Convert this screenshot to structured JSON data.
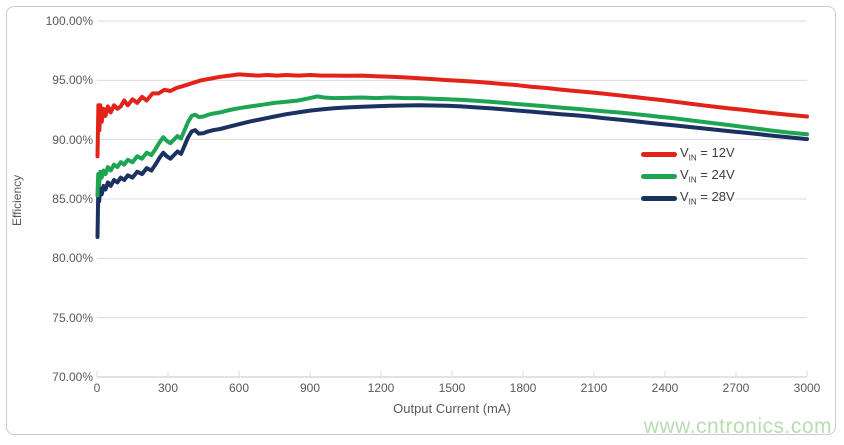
{
  "colors": {
    "red": "#e2231a",
    "green": "#1ea553",
    "navy": "#1a3162",
    "grid": "#dcdcdc",
    "axis_line": "#c6c6c6",
    "axis_text": "#595959",
    "legend_text": "#3d3d3d",
    "watermark": "#b6deb0",
    "card_border": "#cccccc"
  },
  "watermark": {
    "text": "www.cntronics.com"
  },
  "chart_data": {
    "type": "line",
    "title": "",
    "xlabel": "Output Current (mA)",
    "ylabel": "Efficiency",
    "xlim": [
      0,
      3000
    ],
    "ylim": [
      70,
      100
    ],
    "grid": "horizontal",
    "legend_position": "middle-right",
    "x_ticks": [
      0,
      300,
      600,
      900,
      1200,
      1500,
      1800,
      2100,
      2400,
      2700,
      3000
    ],
    "x_tick_labels": [
      "0",
      "300",
      "600",
      "900",
      "1200",
      "1500",
      "1800",
      "2100",
      "2400",
      "2700",
      "3000"
    ],
    "y_ticks": [
      100,
      95,
      90,
      85,
      80,
      75,
      70
    ],
    "y_tick_labels": [
      "100.00%",
      "95.00%",
      "90.00%",
      "85.00%",
      "80.00%",
      "75.00%",
      "70.00%"
    ],
    "series": [
      {
        "name": "VIN = 12V",
        "legend": {
          "base": "V",
          "sub": "IN",
          "rest": " = 12V"
        },
        "color": "#e2231a",
        "points": [
          [
            2,
            88.6
          ],
          [
            6,
            92.9
          ],
          [
            10,
            90.8
          ],
          [
            14,
            92.9
          ],
          [
            20,
            91.5
          ],
          [
            28,
            92.6
          ],
          [
            36,
            92.0
          ],
          [
            46,
            92.8
          ],
          [
            58,
            92.3
          ],
          [
            72,
            92.9
          ],
          [
            86,
            92.6
          ],
          [
            100,
            92.8
          ],
          [
            115,
            93.3
          ],
          [
            130,
            92.9
          ],
          [
            150,
            93.4
          ],
          [
            170,
            93.1
          ],
          [
            190,
            93.6
          ],
          [
            210,
            93.3
          ],
          [
            235,
            93.9
          ],
          [
            260,
            93.9
          ],
          [
            285,
            94.2
          ],
          [
            310,
            94.1
          ],
          [
            335,
            94.35
          ],
          [
            360,
            94.5
          ],
          [
            400,
            94.75
          ],
          [
            440,
            95.0
          ],
          [
            480,
            95.15
          ],
          [
            520,
            95.3
          ],
          [
            560,
            95.4
          ],
          [
            600,
            95.5
          ],
          [
            640,
            95.45
          ],
          [
            680,
            95.4
          ],
          [
            720,
            95.45
          ],
          [
            760,
            95.4
          ],
          [
            800,
            95.45
          ],
          [
            850,
            95.4
          ],
          [
            900,
            95.45
          ],
          [
            950,
            95.4
          ],
          [
            1000,
            95.4
          ],
          [
            1060,
            95.38
          ],
          [
            1120,
            95.4
          ],
          [
            1180,
            95.35
          ],
          [
            1240,
            95.3
          ],
          [
            1300,
            95.25
          ],
          [
            1360,
            95.18
          ],
          [
            1420,
            95.1
          ],
          [
            1480,
            95.02
          ],
          [
            1540,
            94.95
          ],
          [
            1600,
            94.88
          ],
          [
            1660,
            94.78
          ],
          [
            1720,
            94.68
          ],
          [
            1780,
            94.58
          ],
          [
            1840,
            94.45
          ],
          [
            1900,
            94.35
          ],
          [
            1960,
            94.22
          ],
          [
            2020,
            94.1
          ],
          [
            2080,
            94.0
          ],
          [
            2140,
            93.88
          ],
          [
            2200,
            93.75
          ],
          [
            2260,
            93.62
          ],
          [
            2320,
            93.48
          ],
          [
            2380,
            93.35
          ],
          [
            2440,
            93.2
          ],
          [
            2500,
            93.05
          ],
          [
            2560,
            92.9
          ],
          [
            2620,
            92.75
          ],
          [
            2680,
            92.62
          ],
          [
            2740,
            92.5
          ],
          [
            2800,
            92.35
          ],
          [
            2860,
            92.22
          ],
          [
            2920,
            92.1
          ],
          [
            3000,
            91.95
          ]
        ]
      },
      {
        "name": "VIN = 24V",
        "legend": {
          "base": "V",
          "sub": "IN",
          "rest": " = 24V"
        },
        "color": "#1ea553",
        "points": [
          [
            2,
            85.3
          ],
          [
            5,
            87.1
          ],
          [
            9,
            86.2
          ],
          [
            14,
            87.3
          ],
          [
            20,
            86.8
          ],
          [
            28,
            87.4
          ],
          [
            36,
            87.1
          ],
          [
            46,
            87.7
          ],
          [
            58,
            87.4
          ],
          [
            72,
            87.9
          ],
          [
            86,
            87.7
          ],
          [
            100,
            88.1
          ],
          [
            115,
            87.9
          ],
          [
            130,
            88.3
          ],
          [
            150,
            88.1
          ],
          [
            170,
            88.6
          ],
          [
            190,
            88.4
          ],
          [
            210,
            88.9
          ],
          [
            230,
            88.7
          ],
          [
            250,
            89.3
          ],
          [
            265,
            89.8
          ],
          [
            280,
            90.2
          ],
          [
            295,
            89.9
          ],
          [
            310,
            89.7
          ],
          [
            325,
            90.0
          ],
          [
            340,
            90.3
          ],
          [
            355,
            90.1
          ],
          [
            370,
            90.8
          ],
          [
            385,
            91.5
          ],
          [
            400,
            92.0
          ],
          [
            415,
            92.1
          ],
          [
            430,
            91.9
          ],
          [
            450,
            91.95
          ],
          [
            470,
            92.1
          ],
          [
            490,
            92.2
          ],
          [
            520,
            92.3
          ],
          [
            560,
            92.5
          ],
          [
            600,
            92.65
          ],
          [
            650,
            92.8
          ],
          [
            700,
            92.95
          ],
          [
            750,
            93.1
          ],
          [
            800,
            93.2
          ],
          [
            850,
            93.3
          ],
          [
            900,
            93.5
          ],
          [
            930,
            93.65
          ],
          [
            960,
            93.55
          ],
          [
            1000,
            93.5
          ],
          [
            1060,
            93.52
          ],
          [
            1120,
            93.55
          ],
          [
            1180,
            93.5
          ],
          [
            1240,
            93.55
          ],
          [
            1300,
            93.5
          ],
          [
            1360,
            93.5
          ],
          [
            1420,
            93.45
          ],
          [
            1480,
            93.4
          ],
          [
            1540,
            93.35
          ],
          [
            1600,
            93.28
          ],
          [
            1660,
            93.2
          ],
          [
            1720,
            93.1
          ],
          [
            1780,
            93.0
          ],
          [
            1840,
            92.9
          ],
          [
            1900,
            92.8
          ],
          [
            1960,
            92.7
          ],
          [
            2020,
            92.6
          ],
          [
            2080,
            92.5
          ],
          [
            2140,
            92.4
          ],
          [
            2200,
            92.3
          ],
          [
            2260,
            92.18
          ],
          [
            2320,
            92.05
          ],
          [
            2380,
            91.92
          ],
          [
            2440,
            91.8
          ],
          [
            2500,
            91.65
          ],
          [
            2560,
            91.5
          ],
          [
            2620,
            91.35
          ],
          [
            2680,
            91.2
          ],
          [
            2740,
            91.05
          ],
          [
            2800,
            90.9
          ],
          [
            2860,
            90.75
          ],
          [
            2920,
            90.6
          ],
          [
            3000,
            90.45
          ]
        ]
      },
      {
        "name": "VIN = 28V",
        "legend": {
          "base": "V",
          "sub": "IN",
          "rest": " = 28V"
        },
        "color": "#1a3162",
        "points": [
          [
            2,
            81.8
          ],
          [
            5,
            85.4
          ],
          [
            9,
            84.8
          ],
          [
            14,
            85.9
          ],
          [
            20,
            85.4
          ],
          [
            28,
            86.1
          ],
          [
            36,
            85.8
          ],
          [
            46,
            86.4
          ],
          [
            58,
            86.1
          ],
          [
            72,
            86.6
          ],
          [
            86,
            86.4
          ],
          [
            100,
            86.8
          ],
          [
            115,
            86.6
          ],
          [
            130,
            87.0
          ],
          [
            150,
            86.8
          ],
          [
            170,
            87.3
          ],
          [
            190,
            87.1
          ],
          [
            210,
            87.6
          ],
          [
            230,
            87.4
          ],
          [
            250,
            88.0
          ],
          [
            265,
            88.5
          ],
          [
            280,
            88.9
          ],
          [
            295,
            88.6
          ],
          [
            310,
            88.4
          ],
          [
            325,
            88.7
          ],
          [
            340,
            89.0
          ],
          [
            355,
            88.8
          ],
          [
            370,
            89.5
          ],
          [
            385,
            90.2
          ],
          [
            400,
            90.7
          ],
          [
            415,
            90.8
          ],
          [
            430,
            90.5
          ],
          [
            450,
            90.55
          ],
          [
            470,
            90.7
          ],
          [
            490,
            90.8
          ],
          [
            520,
            90.9
          ],
          [
            560,
            91.1
          ],
          [
            600,
            91.3
          ],
          [
            650,
            91.55
          ],
          [
            700,
            91.75
          ],
          [
            750,
            91.95
          ],
          [
            800,
            92.15
          ],
          [
            850,
            92.3
          ],
          [
            900,
            92.45
          ],
          [
            950,
            92.55
          ],
          [
            1000,
            92.65
          ],
          [
            1060,
            92.72
          ],
          [
            1120,
            92.78
          ],
          [
            1180,
            92.82
          ],
          [
            1240,
            92.85
          ],
          [
            1300,
            92.88
          ],
          [
            1360,
            92.9
          ],
          [
            1420,
            92.88
          ],
          [
            1480,
            92.85
          ],
          [
            1540,
            92.8
          ],
          [
            1600,
            92.72
          ],
          [
            1660,
            92.65
          ],
          [
            1720,
            92.55
          ],
          [
            1780,
            92.45
          ],
          [
            1840,
            92.35
          ],
          [
            1900,
            92.25
          ],
          [
            1960,
            92.15
          ],
          [
            2020,
            92.05
          ],
          [
            2080,
            91.95
          ],
          [
            2140,
            91.82
          ],
          [
            2200,
            91.7
          ],
          [
            2260,
            91.58
          ],
          [
            2320,
            91.45
          ],
          [
            2380,
            91.32
          ],
          [
            2440,
            91.2
          ],
          [
            2500,
            91.08
          ],
          [
            2560,
            90.95
          ],
          [
            2620,
            90.82
          ],
          [
            2680,
            90.7
          ],
          [
            2740,
            90.58
          ],
          [
            2800,
            90.45
          ],
          [
            2860,
            90.32
          ],
          [
            2920,
            90.2
          ],
          [
            3000,
            90.05
          ]
        ]
      }
    ]
  }
}
